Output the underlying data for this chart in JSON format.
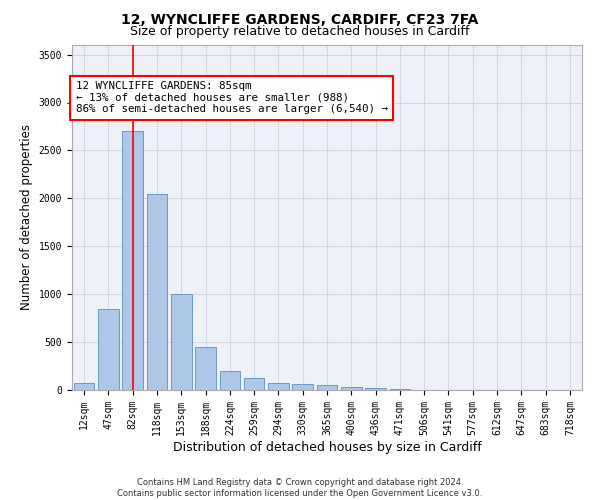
{
  "title_line1": "12, WYNCLIFFE GARDENS, CARDIFF, CF23 7FA",
  "title_line2": "Size of property relative to detached houses in Cardiff",
  "xlabel": "Distribution of detached houses by size in Cardiff",
  "ylabel": "Number of detached properties",
  "categories": [
    "12sqm",
    "47sqm",
    "82sqm",
    "118sqm",
    "153sqm",
    "188sqm",
    "224sqm",
    "259sqm",
    "294sqm",
    "330sqm",
    "365sqm",
    "400sqm",
    "436sqm",
    "471sqm",
    "506sqm",
    "541sqm",
    "577sqm",
    "612sqm",
    "647sqm",
    "683sqm",
    "718sqm"
  ],
  "values": [
    75,
    850,
    2700,
    2050,
    1000,
    450,
    200,
    130,
    75,
    60,
    50,
    30,
    20,
    10,
    5,
    3,
    2,
    1,
    1,
    0,
    0
  ],
  "bar_color": "#aec6e8",
  "bar_edge_color": "#5a8fc0",
  "red_line_index": 2,
  "annotation_text": "12 WYNCLIFFE GARDENS: 85sqm\n← 13% of detached houses are smaller (988)\n86% of semi-detached houses are larger (6,540) →",
  "annotation_box_color": "white",
  "annotation_box_edge": "red",
  "ylim": [
    0,
    3600
  ],
  "yticks": [
    0,
    500,
    1000,
    1500,
    2000,
    2500,
    3000,
    3500
  ],
  "grid_color": "#d0d8e8",
  "background_color": "#eef2f8",
  "footer_line1": "Contains HM Land Registry data © Crown copyright and database right 2024.",
  "footer_line2": "Contains public sector information licensed under the Open Government Licence v3.0.",
  "title_fontsize": 10,
  "subtitle_fontsize": 9,
  "tick_fontsize": 7,
  "xlabel_fontsize": 9,
  "ylabel_fontsize": 8.5
}
